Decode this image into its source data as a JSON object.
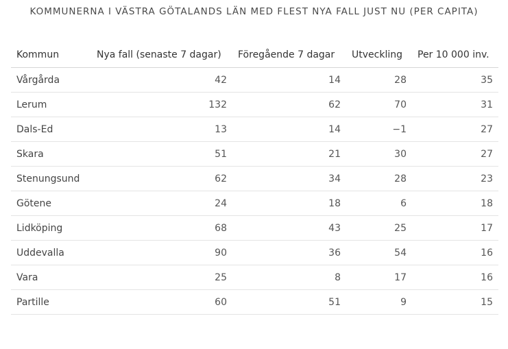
{
  "chart_data": {
    "type": "table",
    "title": "KOMMUNERNA I VÄSTRA GÖTALANDS LÄN MED FLEST NYA FALL JUST NU (PER CAPITA)",
    "columns": [
      "Kommun",
      "Nya fall (senaste 7 dagar)",
      "Föregående 7 dagar",
      "Utveckling",
      "Per 10 000 inv."
    ],
    "rows": [
      [
        "Vårgårda",
        "42",
        "14",
        "28",
        "35"
      ],
      [
        "Lerum",
        "132",
        "62",
        "70",
        "31"
      ],
      [
        "Dals-Ed",
        "13",
        "14",
        "−1",
        "27"
      ],
      [
        "Skara",
        "51",
        "21",
        "30",
        "27"
      ],
      [
        "Stenungsund",
        "62",
        "34",
        "28",
        "23"
      ],
      [
        "Götene",
        "24",
        "18",
        "6",
        "18"
      ],
      [
        "Lidköping",
        "68",
        "43",
        "25",
        "17"
      ],
      [
        "Uddevalla",
        "90",
        "36",
        "54",
        "16"
      ],
      [
        "Vara",
        "25",
        "8",
        "17",
        "16"
      ],
      [
        "Partille",
        "60",
        "51",
        "9",
        "15"
      ]
    ]
  }
}
